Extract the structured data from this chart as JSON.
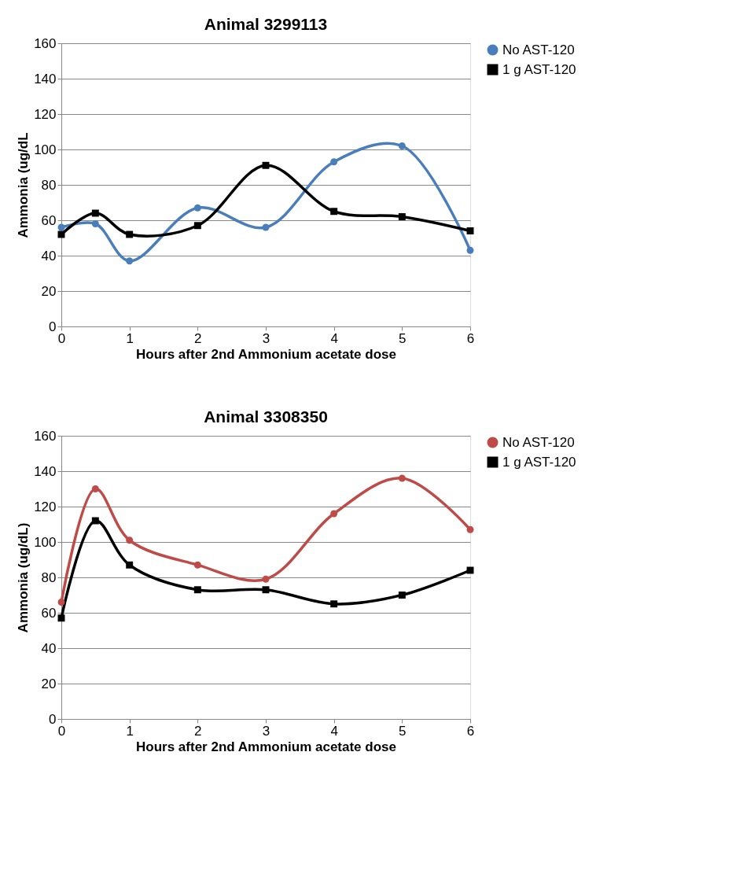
{
  "chart_data": [
    {
      "type": "line",
      "title": "Animal 3299113",
      "xlabel": "Hours after 2nd Ammonium acetate dose",
      "ylabel": "Ammonia (ug/dL",
      "x": [
        0,
        0.5,
        1,
        2,
        3,
        4,
        5,
        6
      ],
      "xlim": [
        0,
        6
      ],
      "xticks": [
        0,
        1,
        2,
        3,
        4,
        5,
        6
      ],
      "ylim": [
        0,
        160
      ],
      "yticks": [
        0,
        20,
        40,
        60,
        80,
        100,
        120,
        140,
        160
      ],
      "grid": "y",
      "legend": "right",
      "series": [
        {
          "name": "No AST-120",
          "color": "#4a7ebb",
          "marker": "circle",
          "values": [
            56,
            58,
            37,
            67,
            56,
            93,
            102,
            43
          ]
        },
        {
          "name": "1 g AST-120",
          "color": "#000000",
          "marker": "square",
          "values": [
            52,
            64,
            52,
            57,
            91,
            65,
            62,
            54
          ]
        }
      ]
    },
    {
      "type": "line",
      "title": "Animal 3308350",
      "xlabel": "Hours after 2nd Ammonium acetate dose",
      "ylabel": "Ammonia (ug/dL)",
      "x": [
        0,
        0.5,
        1,
        2,
        3,
        4,
        5,
        6
      ],
      "xlim": [
        0,
        6
      ],
      "xticks": [
        0,
        1,
        2,
        3,
        4,
        5,
        6
      ],
      "ylim": [
        0,
        160
      ],
      "yticks": [
        0,
        20,
        40,
        60,
        80,
        100,
        120,
        140,
        160
      ],
      "grid": "y",
      "legend": "right",
      "series": [
        {
          "name": "No AST-120",
          "color": "#be4b48",
          "marker": "circle",
          "values": [
            66,
            130,
            101,
            87,
            79,
            116,
            136,
            107
          ]
        },
        {
          "name": "1 g AST-120",
          "color": "#000000",
          "marker": "square",
          "values": [
            57,
            112,
            87,
            73,
            73,
            65,
            70,
            84
          ]
        }
      ]
    }
  ]
}
